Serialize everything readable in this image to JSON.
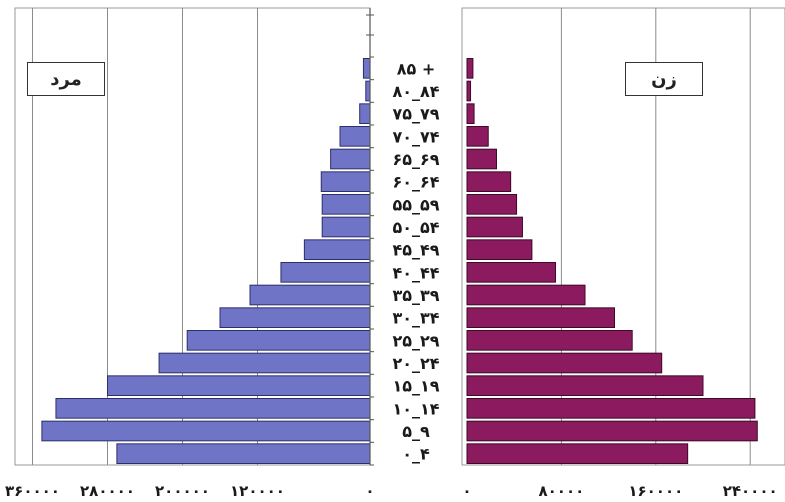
{
  "chart_data": {
    "type": "bar",
    "title": "",
    "age_groups": [
      "۸۵ +",
      "۸۰_۸۴",
      "۷۵_۷۹",
      "۷۰_۷۴",
      "۶۵_۶۹",
      "۶۰_۶۴",
      "۵۵_۵۹",
      "۵۰_۵۴",
      "۴۵_۴۹",
      "۴۰_۴۴",
      "۳۵_۳۹",
      "۳۰_۳۴",
      "۲۵_۲۹",
      "۲۰_۲۴",
      "۱۵_۱۹",
      "۱۰_۱۴",
      "۵_۹",
      "۰_۴"
    ],
    "series": [
      {
        "name": "مرد",
        "color": "#6f74c6",
        "values": [
          7000,
          4500,
          11000,
          32000,
          42000,
          52000,
          51000,
          51000,
          70000,
          95000,
          128000,
          160000,
          195000,
          225000,
          280000,
          335000,
          350000,
          270000
        ]
      },
      {
        "name": "زن",
        "color": "#8b1a5f",
        "values": [
          5000,
          3000,
          6000,
          18000,
          25000,
          37000,
          42000,
          47000,
          55000,
          75000,
          100000,
          125000,
          140000,
          165000,
          200000,
          244000,
          246000,
          187000
        ]
      }
    ],
    "x_ticks_left": [
      360000,
      280000,
      200000,
      120000,
      0
    ],
    "x_tick_labels_left": [
      "۳۶۰۰۰۰",
      "۲۸۰۰۰۰",
      "۲۰۰۰۰۰",
      "۱۲۰۰۰۰",
      "۰"
    ],
    "x_ticks_right": [
      0,
      80000,
      160000,
      240000
    ],
    "x_tick_labels_right": [
      "۰",
      "۸۰۰۰۰",
      "۱۶۰۰۰۰",
      "۲۴۰۰۰۰"
    ],
    "xlim_left": [
      0,
      400000
    ],
    "xlim_right": [
      0,
      250000
    ],
    "grid": true
  }
}
